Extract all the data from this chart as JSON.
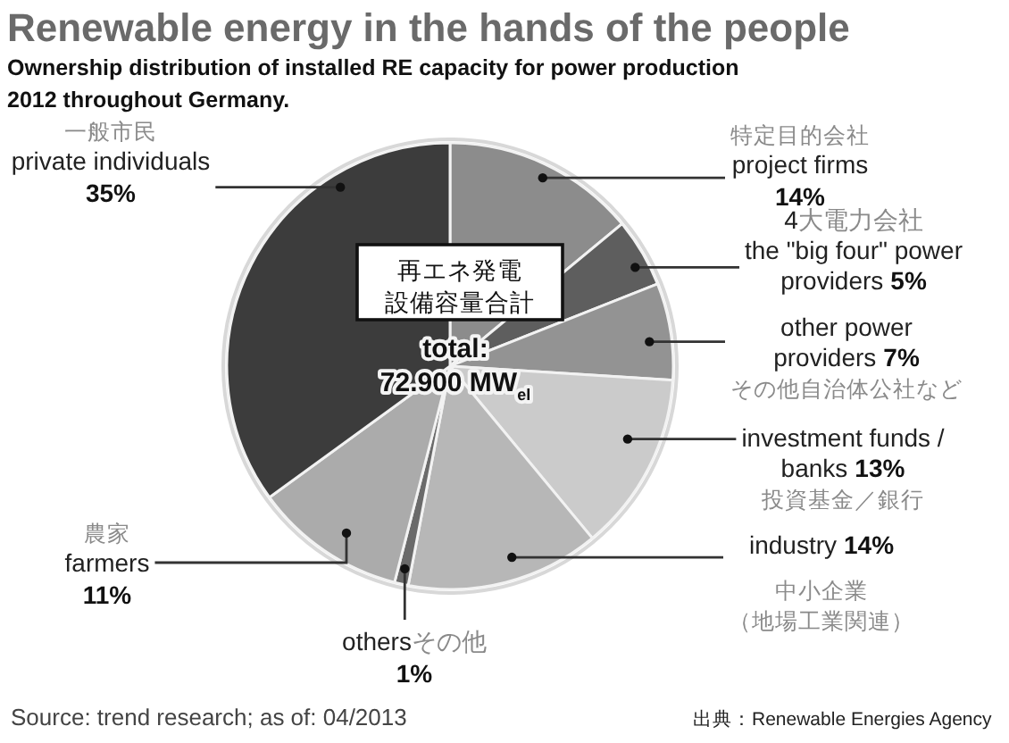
{
  "chart_data": {
    "type": "pie",
    "title": "Renewable energy in the hands of the people",
    "subtitle": "Ownership distribution of installed RE capacity for power production\n2012 throughout Germany.",
    "categories": [
      "特定目的会社\nproject firms",
      "4大電力会社\nthe \"big four\" power\nproviders",
      "other power\nproviders\nその他自治体公社など",
      "investment funds /\nbanks\n投資基金／銀行",
      "industry\n中小企業（地場工業関連）",
      "othersその他",
      "農家\nfarmers",
      "一般市民\nprivate individuals"
    ],
    "values": [
      14,
      5,
      7,
      13,
      14,
      1,
      11,
      35
    ],
    "colors": [
      "#8c8c8c",
      "#5e5e5e",
      "#939393",
      "#cbcbcb",
      "#b7b7b7",
      "#6a6a6a",
      "#ababab",
      "#3c3c3c"
    ],
    "value_labels": [
      "14%",
      "5%",
      "7%",
      "13%",
      "14%",
      "1%",
      "11%",
      "35%"
    ],
    "annotations": [
      "再エネ発電設備容量合計",
      "total:\n72.900 MW$_{el}$",
      "Source: trend research; as of: 04/2013",
      "出典：Renewable Energies Agency"
    ]
  }
}
